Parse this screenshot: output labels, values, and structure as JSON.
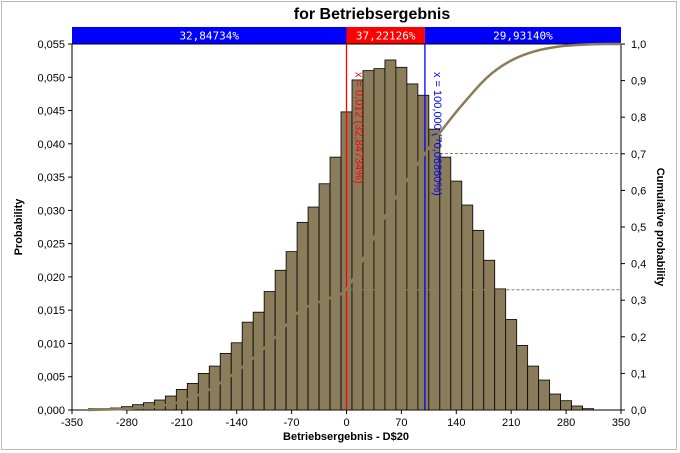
{
  "chart_data": {
    "type": "bar",
    "title": "for Betriebsergebnis",
    "xlabel": "Betriebsergebnis - D$20",
    "ylabel_left": "Probability",
    "ylabel_right": "Cumulative probability",
    "xlim": [
      -350,
      350
    ],
    "ylim_left": [
      0,
      0.055
    ],
    "ylim_right": [
      0,
      1.0
    ],
    "x_ticks": [
      "-350",
      "-280",
      "-210",
      "-140",
      "-70",
      "0",
      "70",
      "140",
      "210",
      "280",
      "350"
    ],
    "y_left_ticks": [
      "0,000",
      "0,005",
      "0,010",
      "0,015",
      "0,020",
      "0,025",
      "0,030",
      "0,035",
      "0,040",
      "0,045",
      "0,050",
      "0,055"
    ],
    "y_right_ticks": [
      "0,0",
      "0,1",
      "0,2",
      "0,3",
      "0,4",
      "0,5",
      "0,6",
      "0,7",
      "0,8",
      "0,9",
      "1,0"
    ],
    "bin_width": 14,
    "bin_centers": [
      -322,
      -308,
      -294,
      -280,
      -266,
      -252,
      -238,
      -224,
      -210,
      -196,
      -182,
      -168,
      -154,
      -140,
      -126,
      -112,
      -98,
      -84,
      -70,
      -56,
      -42,
      -28,
      -14,
      0,
      14,
      28,
      42,
      56,
      70,
      84,
      98,
      112,
      126,
      140,
      154,
      168,
      182,
      196,
      210,
      224,
      238,
      252,
      266,
      280,
      294,
      308
    ],
    "values": [
      0.0002,
      0.0002,
      0.0003,
      0.0005,
      0.0008,
      0.0011,
      0.0015,
      0.0021,
      0.0031,
      0.004,
      0.0055,
      0.0066,
      0.0085,
      0.0101,
      0.0132,
      0.0147,
      0.0178,
      0.021,
      0.0238,
      0.0282,
      0.0305,
      0.034,
      0.038,
      0.0448,
      0.0496,
      0.051,
      0.0513,
      0.0526,
      0.0515,
      0.049,
      0.0473,
      0.0422,
      0.038,
      0.0344,
      0.0308,
      0.027,
      0.0225,
      0.0182,
      0.0136,
      0.0097,
      0.0066,
      0.0045,
      0.0024,
      0.0014,
      0.0006,
      0.0002
    ],
    "bar_color": "#8b7d5b",
    "cumulative": {
      "x": [
        -330,
        -280,
        -240,
        -210,
        -180,
        -150,
        -120,
        -90,
        -60,
        -30,
        0,
        30,
        60,
        90,
        100,
        120,
        150,
        180,
        210,
        240,
        270,
        300,
        330,
        350
      ],
      "y": [
        0.0,
        0.003,
        0.01,
        0.024,
        0.05,
        0.09,
        0.14,
        0.2,
        0.27,
        0.3,
        0.33,
        0.45,
        0.57,
        0.67,
        0.7,
        0.76,
        0.84,
        0.91,
        0.955,
        0.98,
        0.993,
        0.998,
        1.0,
        1.0
      ],
      "color": "#8b7d5b"
    },
    "markers": [
      {
        "x": 0,
        "label": "x = 0,012 (32,84734%)",
        "color": "#ff0000"
      },
      {
        "x": 100,
        "label": "x = 100,000 (70,06860%)",
        "color": "#0000ff"
      }
    ],
    "reference_lines": [
      {
        "y_right": 0.7007,
        "from_x": 100
      },
      {
        "y_right": 0.3285,
        "from_x": 0
      }
    ],
    "bands": [
      {
        "label": "32,84734%",
        "from": -350,
        "to": 0,
        "color": "#0000ff"
      },
      {
        "label": "37,22126%",
        "from": 0,
        "to": 100,
        "color": "#ff0000"
      },
      {
        "label": "29,93140%",
        "from": 100,
        "to": 350,
        "color": "#0000ff"
      }
    ]
  }
}
